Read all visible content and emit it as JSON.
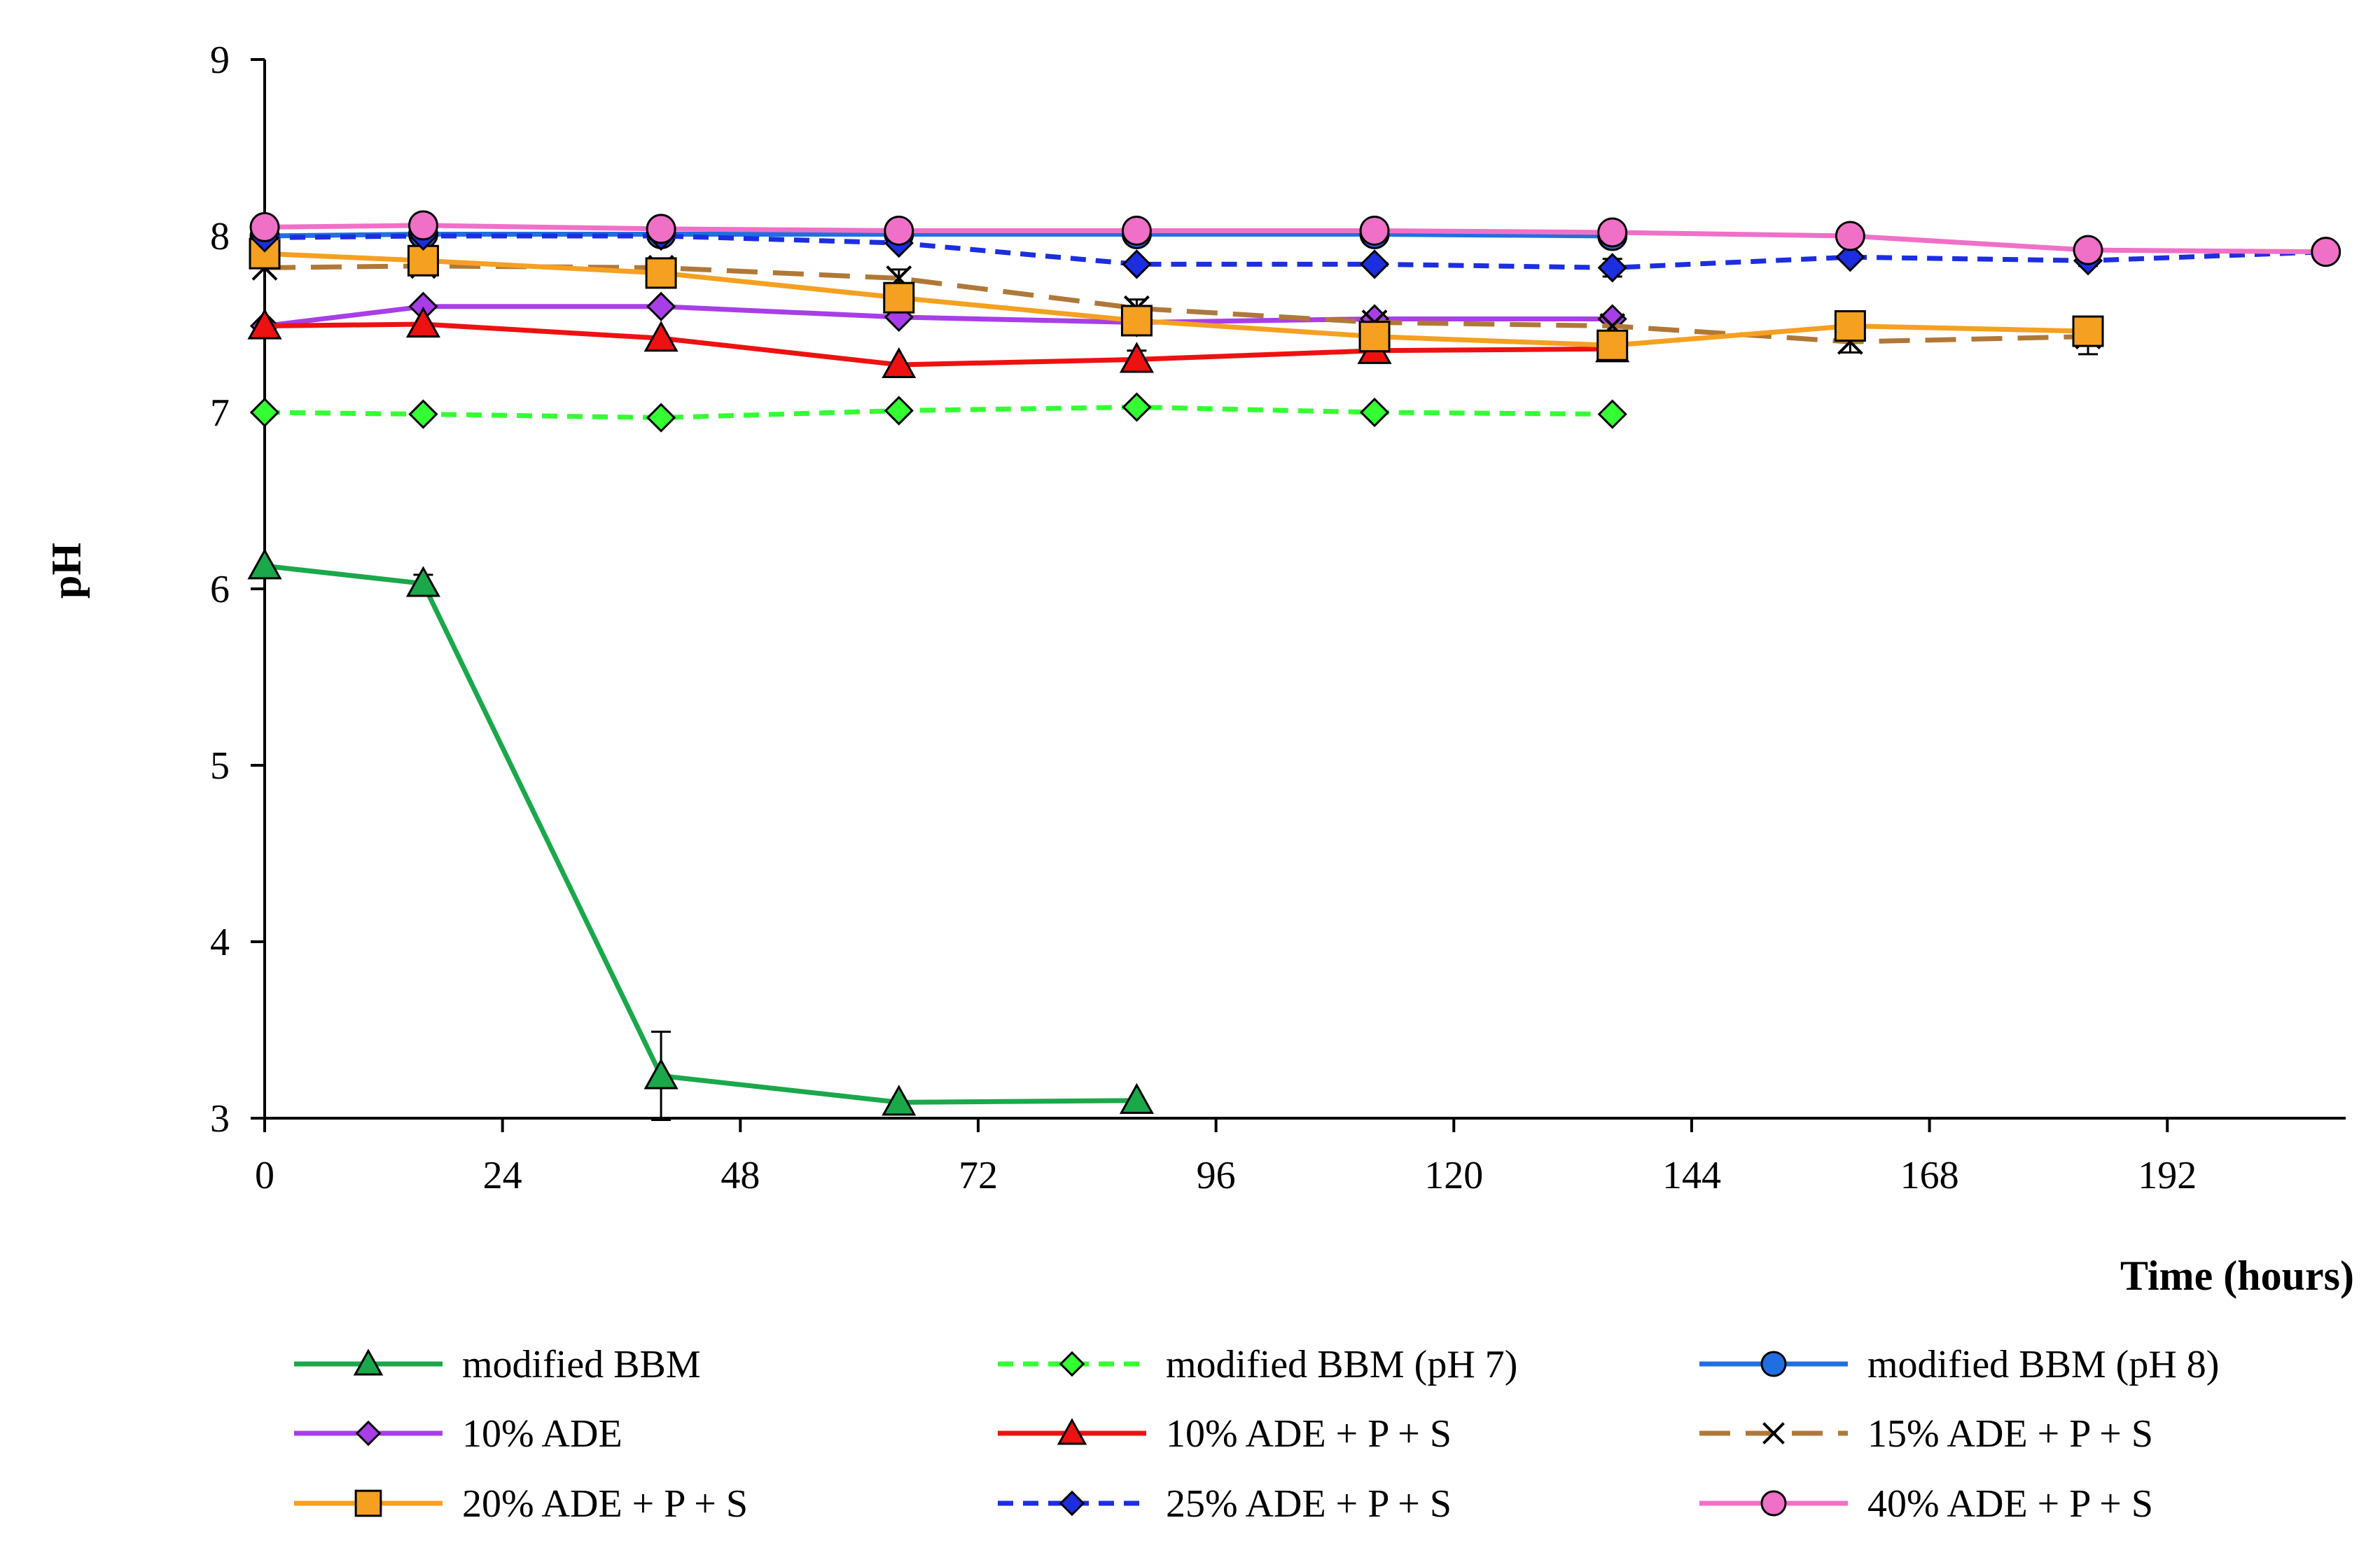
{
  "chart_data": {
    "type": "line",
    "title": "",
    "xlabel": "Time (hours)",
    "ylabel": "pH",
    "xlim": [
      0,
      210
    ],
    "ylim": [
      3,
      9
    ],
    "xticks": [
      0,
      24,
      48,
      72,
      96,
      120,
      144,
      168,
      192
    ],
    "yticks": [
      3,
      4,
      5,
      6,
      7,
      8,
      9
    ],
    "grid": false,
    "legend_position": "bottom",
    "series": [
      {
        "name": "modified BBM",
        "color": "#1aa84a",
        "marker": "triangle",
        "marker_fill": "#1aa84a",
        "dash": "solid",
        "x": [
          0,
          16,
          40,
          64,
          88
        ],
        "y": [
          6.13,
          6.03,
          3.24,
          3.09,
          3.1
        ],
        "err": [
          0,
          0.05,
          0.25,
          0,
          0
        ]
      },
      {
        "name": "modified BBM (pH 7)",
        "color": "#33ff33",
        "marker": "diamond",
        "marker_fill": "#33ff33",
        "dash": "dash",
        "x": [
          0,
          16,
          40,
          64,
          88,
          112,
          136
        ],
        "y": [
          7.0,
          6.99,
          6.97,
          7.01,
          7.03,
          7.0,
          6.99
        ],
        "err": [
          0,
          0,
          0,
          0,
          0,
          0,
          0
        ]
      },
      {
        "name": "modified BBM (pH 8)",
        "color": "#1f6fe0",
        "marker": "circle",
        "marker_fill": "#1f6fe0",
        "dash": "solid",
        "x": [
          0,
          16,
          40,
          64,
          88,
          112,
          136
        ],
        "y": [
          8.0,
          8.01,
          8.01,
          8.01,
          8.01,
          8.01,
          8.0
        ],
        "err": [
          0,
          0,
          0,
          0,
          0,
          0,
          0
        ]
      },
      {
        "name": "10% ADE",
        "color": "#a83ee8",
        "marker": "diamond",
        "marker_fill": "#a83ee8",
        "dash": "solid",
        "x": [
          0,
          16,
          40,
          64,
          88,
          112,
          136
        ],
        "y": [
          7.49,
          7.6,
          7.6,
          7.54,
          7.51,
          7.53,
          7.53
        ],
        "err": [
          0,
          0,
          0,
          0,
          0,
          0,
          0
        ]
      },
      {
        "name": "10% ADE + P + S",
        "color": "#ee1111",
        "marker": "triangle",
        "marker_fill": "#ee1111",
        "dash": "solid",
        "x": [
          0,
          16,
          40,
          64,
          88,
          112,
          136
        ],
        "y": [
          7.49,
          7.5,
          7.42,
          7.27,
          7.3,
          7.35,
          7.36
        ],
        "err": [
          0,
          0,
          0,
          0,
          0.05,
          0,
          0
        ]
      },
      {
        "name": "15% ADE + P + S",
        "color": "#b07838",
        "marker": "x",
        "marker_fill": "none",
        "dash": "longdash",
        "x": [
          0,
          16,
          40,
          64,
          88,
          112,
          136,
          160,
          184
        ],
        "y": [
          7.82,
          7.83,
          7.82,
          7.76,
          7.59,
          7.51,
          7.49,
          7.4,
          7.43
        ],
        "err": [
          0,
          0,
          0,
          0.05,
          0.05,
          0,
          0,
          0.06,
          0.1
        ]
      },
      {
        "name": "20% ADE + P + S",
        "color": "#f5a020",
        "marker": "square",
        "marker_fill": "#f5a020",
        "dash": "solid",
        "x": [
          0,
          16,
          40,
          64,
          88,
          112,
          136,
          160,
          184
        ],
        "y": [
          7.9,
          7.86,
          7.79,
          7.65,
          7.52,
          7.43,
          7.38,
          7.49,
          7.46
        ],
        "err": [
          0,
          0,
          0,
          0,
          0,
          0,
          0,
          0,
          0.08
        ]
      },
      {
        "name": "25% ADE + P + S",
        "color": "#1c2ee0",
        "marker": "diamond",
        "marker_fill": "#1c2ee0",
        "dash": "dash",
        "x": [
          0,
          16,
          40,
          64,
          88,
          112,
          136,
          160,
          184,
          208
        ],
        "y": [
          7.99,
          8.0,
          8.0,
          7.96,
          7.84,
          7.84,
          7.82,
          7.88,
          7.86,
          7.91
        ],
        "err": [
          0,
          0,
          0,
          0,
          0,
          0,
          0.05,
          0,
          0.03,
          0
        ]
      },
      {
        "name": "40% ADE + P + S",
        "color": "#f070c8",
        "marker": "circle",
        "marker_fill": "#f070c8",
        "dash": "solid",
        "x": [
          0,
          16,
          40,
          64,
          88,
          112,
          136,
          160,
          184,
          208
        ],
        "y": [
          8.05,
          8.06,
          8.04,
          8.03,
          8.03,
          8.03,
          8.02,
          8.0,
          7.92,
          7.91
        ],
        "err": [
          0,
          0,
          0,
          0,
          0,
          0,
          0,
          0,
          0,
          0.03
        ]
      }
    ]
  }
}
